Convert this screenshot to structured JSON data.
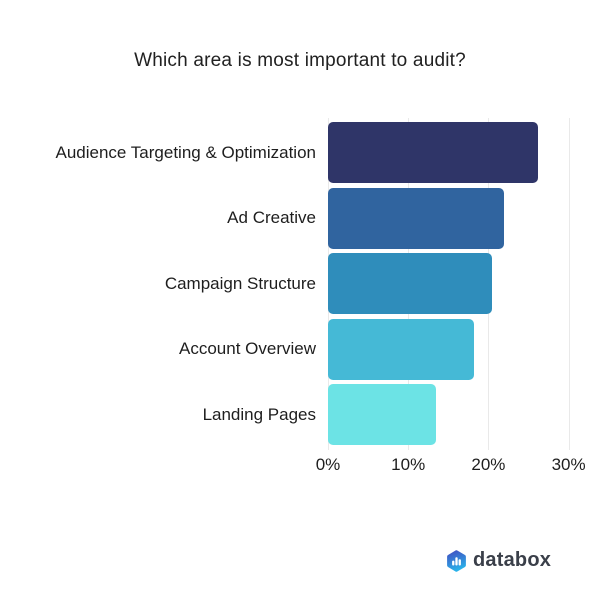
{
  "page": {
    "background": "#ffffff"
  },
  "chart_data": {
    "type": "bar",
    "orientation": "horizontal",
    "title": "Which area is most important to audit?",
    "categories": [
      "Audience Targeting & Optimization",
      "Ad Creative",
      "Campaign Structure",
      "Account Overview",
      "Landing Pages"
    ],
    "values": [
      26.2,
      21.9,
      20.5,
      18.2,
      13.5
    ],
    "value_unit": "%",
    "bar_colors": [
      "#2f3568",
      "#30649f",
      "#2f8dbb",
      "#45b9d6",
      "#6ce3e5"
    ],
    "x_ticks": [
      {
        "value": 0,
        "label": "0%"
      },
      {
        "value": 10,
        "label": "10%"
      },
      {
        "value": 20,
        "label": "20%"
      },
      {
        "value": 30,
        "label": "30%"
      }
    ],
    "xlim": [
      0,
      33.9
    ],
    "xlabel": "",
    "ylabel": "",
    "grid": "vertical, light gray",
    "legend": "none",
    "gridline_color": "#e9e9e9",
    "label_color": "#1e1e1e",
    "title_color": "#212121"
  },
  "branding": {
    "logo_text": "databox",
    "logo_icon": "databox-hexagon-bar-chart-icon",
    "logo_gradient_top": "#4150c2",
    "logo_gradient_bottom": "#29b3ea",
    "logo_text_color": "#3a3f49"
  }
}
